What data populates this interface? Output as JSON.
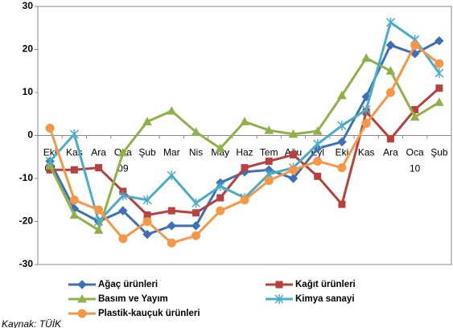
{
  "chart_data": {
    "type": "line",
    "categories": [
      "Eki",
      "Kas",
      "Ara",
      "Oca",
      "Şub",
      "Mar",
      "Nis",
      "May",
      "Haz",
      "Tem",
      "Ağu",
      "Eyl",
      "Eki",
      "Kas",
      "Ara",
      "Oca",
      "Şub"
    ],
    "category_years": [
      "08",
      null,
      null,
      "09",
      null,
      null,
      null,
      null,
      null,
      null,
      null,
      null,
      null,
      null,
      null,
      "10",
      null
    ],
    "series": [
      {
        "name": "Ağaç ürünleri",
        "color": "#3f6fb6",
        "marker": "diamond",
        "values": [
          -6,
          -17,
          -20,
          -17.5,
          -23,
          -21,
          -21,
          -11,
          -8.5,
          -8,
          -10,
          -3,
          -1.5,
          9,
          21,
          19,
          22
        ]
      },
      {
        "name": "Kağıt ürünleri",
        "color": "#b8403e",
        "marker": "square",
        "values": [
          -8,
          -8,
          -7.5,
          -13,
          -18.5,
          -17.5,
          -18,
          -14.5,
          -7.5,
          -6,
          -4.5,
          -9.5,
          -16,
          5.5,
          -0.8,
          6,
          11
        ]
      },
      {
        "name": "Basım  ve Yayım",
        "color": "#8fb149",
        "marker": "triangle",
        "values": [
          -7,
          -18.5,
          -22,
          -4,
          3.2,
          5.7,
          0.8,
          -3,
          3.2,
          1.2,
          0.3,
          1,
          9.3,
          18,
          15,
          4.3,
          7.7
        ]
      },
      {
        "name": "Kimya sanayi",
        "color": "#4bacc6",
        "marker": "star",
        "values": [
          -6,
          0.3,
          -20,
          -14,
          -15,
          -9.3,
          -15.7,
          -11.8,
          -14.5,
          -9,
          -7.5,
          -2,
          2.3,
          6,
          26.3,
          22.3,
          14.5
        ]
      },
      {
        "name": "Plastik-kauçuk ürünleri",
        "color": "#f79646",
        "marker": "circle",
        "values": [
          1.7,
          -15,
          -17.3,
          -24,
          -20,
          -25,
          -23.3,
          -17.5,
          -15,
          -10.5,
          -8,
          -6,
          -7.5,
          2.8,
          10,
          21,
          16.7
        ]
      }
    ],
    "ylim": [
      -30,
      30
    ],
    "yticks": [
      -30,
      -20,
      -10,
      0,
      10,
      20,
      30
    ],
    "grid": false,
    "legend": "bottom",
    "source": "Kaynak: TÜİK"
  }
}
